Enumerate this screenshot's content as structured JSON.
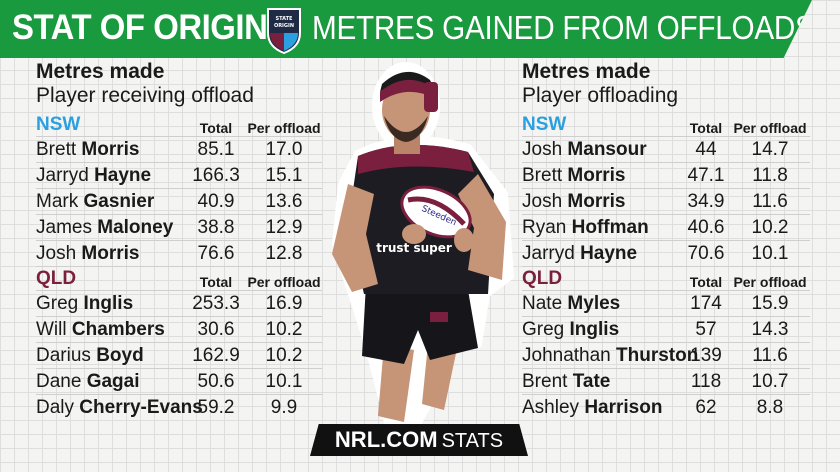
{
  "header": {
    "title_left": "STAT OF ORIGIN",
    "title_right": "METRES GAINED FROM OFFLOADS",
    "logo_text": "STATE of ORIGIN"
  },
  "colors": {
    "banner": "#1a9a3e",
    "nsw": "#2aa0e0",
    "qld": "#7a1f3d"
  },
  "left": {
    "heading": "Metres made",
    "subheading": "Player receiving offload",
    "col_total": "Total",
    "col_per": "Per offload",
    "nsw": {
      "label": "NSW",
      "rows": [
        {
          "first": "Brett ",
          "last": "Morris",
          "total": "85.1",
          "per": "17.0"
        },
        {
          "first": "Jarryd ",
          "last": "Hayne",
          "total": "166.3",
          "per": "15.1"
        },
        {
          "first": "Mark ",
          "last": "Gasnier",
          "total": "40.9",
          "per": "13.6"
        },
        {
          "first": "James ",
          "last": "Maloney",
          "total": "38.8",
          "per": "12.9"
        },
        {
          "first": "Josh ",
          "last": "Morris",
          "total": "76.6",
          "per": "12.8"
        }
      ]
    },
    "qld": {
      "label": "QLD",
      "rows": [
        {
          "first": "Greg ",
          "last": "Inglis",
          "total": "253.3",
          "per": "16.9"
        },
        {
          "first": "Will ",
          "last": "Chambers",
          "total": "30.6",
          "per": "10.2"
        },
        {
          "first": "Darius ",
          "last": "Boyd",
          "total": "162.9",
          "per": "10.2"
        },
        {
          "first": "Dane ",
          "last": "Gagai",
          "total": "50.6",
          "per": "10.1"
        },
        {
          "first": "Daly ",
          "last": "Cherry-Evans",
          "total": "59.2",
          "per": "9.9"
        }
      ]
    }
  },
  "right": {
    "heading": "Metres made",
    "subheading": "Player offloading",
    "col_total": "Total",
    "col_per": "Per offload",
    "nsw": {
      "label": "NSW",
      "rows": [
        {
          "first": "Josh ",
          "last": "Mansour",
          "total": "44",
          "per": "14.7"
        },
        {
          "first": "Brett ",
          "last": "Morris",
          "total": "47.1",
          "per": "11.8"
        },
        {
          "first": "Josh ",
          "last": "Morris",
          "total": "34.9",
          "per": "11.6"
        },
        {
          "first": "Ryan ",
          "last": "Hoffman",
          "total": "40.6",
          "per": "10.2"
        },
        {
          "first": "Jarryd ",
          "last": "Hayne",
          "total": "70.6",
          "per": "10.1"
        }
      ]
    },
    "qld": {
      "label": "QLD",
      "rows": [
        {
          "first": "Nate ",
          "last": "Myles",
          "total": "174",
          "per": "15.9"
        },
        {
          "first": "Greg ",
          "last": "Inglis",
          "total": "57",
          "per": "14.3"
        },
        {
          "first": "Johnathan ",
          "last": "Thurston",
          "total": "139",
          "per": "11.6"
        },
        {
          "first": "Brent ",
          "last": "Tate",
          "total": "118",
          "per": "10.7"
        },
        {
          "first": "Ashley ",
          "last": "Harrison",
          "total": "62",
          "per": "8.8"
        }
      ]
    }
  },
  "athlete": {
    "jersey_text": "trust super",
    "ball_text": "Steeden"
  },
  "footer": {
    "brand": "NRL.COM",
    "suffix": "STATS"
  }
}
